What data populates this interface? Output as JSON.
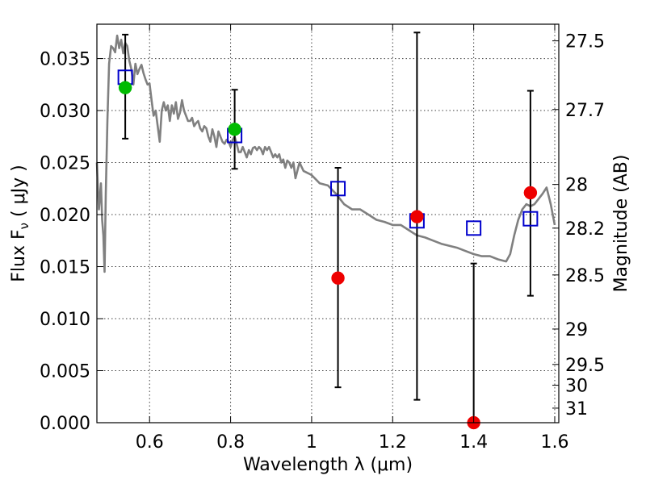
{
  "chart_data": {
    "type": "scatter",
    "xlabel": "Wavelength  λ (μm)",
    "ylabel": "Flux  F",
    "ylabel_sub": "ν",
    "ylabel_unit": "  ( μJy )",
    "y2label": "Magnitude (AB)",
    "xlim": [
      0.47,
      1.61
    ],
    "ylim": [
      0.0,
      0.0383
    ],
    "grid": true,
    "x_ticks": [
      0.6,
      0.8,
      1.0,
      1.2,
      1.4,
      1.6
    ],
    "x_tick_labels": [
      "0.6",
      "0.8",
      "1",
      "1.2",
      "1.4",
      "1.6"
    ],
    "y_ticks": [
      0.0,
      0.005,
      0.01,
      0.015,
      0.02,
      0.025,
      0.03,
      0.035
    ],
    "y_tick_labels": [
      "0.000",
      "0.005",
      "0.010",
      "0.015",
      "0.020",
      "0.025",
      "0.030",
      "0.035"
    ],
    "y2_ticks": [
      {
        "label": "27.5",
        "flux": 0.0367
      },
      {
        "label": "27.7",
        "flux": 0.0301
      },
      {
        "label": "28",
        "flux": 0.0229
      },
      {
        "label": "28.2",
        "flux": 0.0187
      },
      {
        "label": "28.5",
        "flux": 0.0142
      },
      {
        "label": "29",
        "flux": 0.009
      },
      {
        "label": "29.5",
        "flux": 0.0056
      },
      {
        "label": "30",
        "flux": 0.0036
      },
      {
        "label": "31",
        "flux": 0.0014
      }
    ],
    "series": [
      {
        "name": "model spectrum",
        "kind": "line",
        "color": "#808080",
        "x": [
          0.47,
          0.475,
          0.48,
          0.483,
          0.486,
          0.489,
          0.492,
          0.496,
          0.5,
          0.505,
          0.51,
          0.515,
          0.52,
          0.525,
          0.53,
          0.535,
          0.54,
          0.545,
          0.55,
          0.555,
          0.56,
          0.565,
          0.57,
          0.575,
          0.58,
          0.585,
          0.59,
          0.595,
          0.6,
          0.605,
          0.61,
          0.615,
          0.62,
          0.625,
          0.63,
          0.635,
          0.64,
          0.645,
          0.65,
          0.655,
          0.66,
          0.665,
          0.67,
          0.675,
          0.68,
          0.685,
          0.69,
          0.695,
          0.7,
          0.705,
          0.71,
          0.715,
          0.72,
          0.725,
          0.73,
          0.735,
          0.74,
          0.745,
          0.75,
          0.755,
          0.76,
          0.765,
          0.77,
          0.775,
          0.78,
          0.785,
          0.79,
          0.795,
          0.8,
          0.805,
          0.81,
          0.815,
          0.82,
          0.825,
          0.83,
          0.835,
          0.84,
          0.845,
          0.85,
          0.855,
          0.86,
          0.865,
          0.87,
          0.875,
          0.88,
          0.885,
          0.89,
          0.895,
          0.9,
          0.905,
          0.91,
          0.915,
          0.92,
          0.925,
          0.93,
          0.935,
          0.94,
          0.945,
          0.95,
          0.955,
          0.96,
          0.97,
          0.98,
          0.99,
          1.0,
          1.02,
          1.04,
          1.06,
          1.08,
          1.1,
          1.12,
          1.14,
          1.16,
          1.18,
          1.2,
          1.22,
          1.24,
          1.26,
          1.28,
          1.3,
          1.32,
          1.34,
          1.36,
          1.38,
          1.4,
          1.42,
          1.44,
          1.46,
          1.48,
          1.49,
          1.5,
          1.51,
          1.52,
          1.53,
          1.54,
          1.55,
          1.56,
          1.57,
          1.58,
          1.59,
          1.6
        ],
        "y": [
          0.025,
          0.0205,
          0.023,
          0.0195,
          0.018,
          0.0145,
          0.022,
          0.029,
          0.0345,
          0.0362,
          0.036,
          0.0356,
          0.0372,
          0.036,
          0.0368,
          0.0355,
          0.0365,
          0.0362,
          0.0348,
          0.034,
          0.0325,
          0.0345,
          0.0335,
          0.034,
          0.0344,
          0.0336,
          0.033,
          0.0325,
          0.0326,
          0.031,
          0.0295,
          0.03,
          0.0285,
          0.027,
          0.03,
          0.0308,
          0.03,
          0.0305,
          0.029,
          0.0305,
          0.0297,
          0.0308,
          0.0292,
          0.0298,
          0.031,
          0.03,
          0.0295,
          0.029,
          0.029,
          0.0293,
          0.0285,
          0.0288,
          0.029,
          0.0283,
          0.028,
          0.0285,
          0.0283,
          0.0275,
          0.027,
          0.0282,
          0.0275,
          0.0265,
          0.028,
          0.0275,
          0.027,
          0.0268,
          0.0272,
          0.027,
          0.0265,
          0.0272,
          0.0275,
          0.0268,
          0.026,
          0.026,
          0.0265,
          0.026,
          0.0255,
          0.0262,
          0.0258,
          0.0264,
          0.0265,
          0.0262,
          0.0265,
          0.0263,
          0.0258,
          0.0265,
          0.0262,
          0.0265,
          0.026,
          0.0255,
          0.0258,
          0.0255,
          0.0258,
          0.025,
          0.0253,
          0.0245,
          0.0252,
          0.025,
          0.0245,
          0.025,
          0.0235,
          0.025,
          0.0242,
          0.024,
          0.0238,
          0.023,
          0.0228,
          0.022,
          0.021,
          0.0205,
          0.0205,
          0.02,
          0.0195,
          0.0193,
          0.019,
          0.019,
          0.0185,
          0.018,
          0.0178,
          0.0175,
          0.0172,
          0.017,
          0.0168,
          0.0165,
          0.0162,
          0.016,
          0.016,
          0.0157,
          0.0155,
          0.0162,
          0.018,
          0.0195,
          0.0205,
          0.021,
          0.0208,
          0.021,
          0.0215,
          0.022,
          0.0226,
          0.021,
          0.019
        ]
      },
      {
        "name": "blue squares",
        "kind": "square",
        "color": "#0000cc",
        "x": [
          0.54,
          0.81,
          1.065,
          1.26,
          1.4,
          1.54
        ],
        "y": [
          0.0332,
          0.0276,
          0.0225,
          0.0194,
          0.0187,
          0.0196
        ]
      },
      {
        "name": "green circles",
        "kind": "circle",
        "color": "#00bb00",
        "x": [
          0.54,
          0.81
        ],
        "y": [
          0.0322,
          0.0282
        ]
      },
      {
        "name": "red circles",
        "kind": "circle",
        "color": "#ee0000",
        "x": [
          1.065,
          1.26,
          1.4,
          1.54
        ],
        "y": [
          0.0139,
          0.0198,
          0.0,
          0.0221
        ]
      },
      {
        "name": "error bars",
        "kind": "errorbar",
        "color": "#000000",
        "x": [
          0.54,
          0.81,
          1.065,
          1.26,
          1.4,
          1.54
        ],
        "low": [
          0.0273,
          0.0244,
          0.0034,
          0.0022,
          0.0,
          0.0122
        ],
        "high": [
          0.0373,
          0.032,
          0.0245,
          0.0375,
          0.0153,
          0.0319
        ]
      }
    ]
  }
}
